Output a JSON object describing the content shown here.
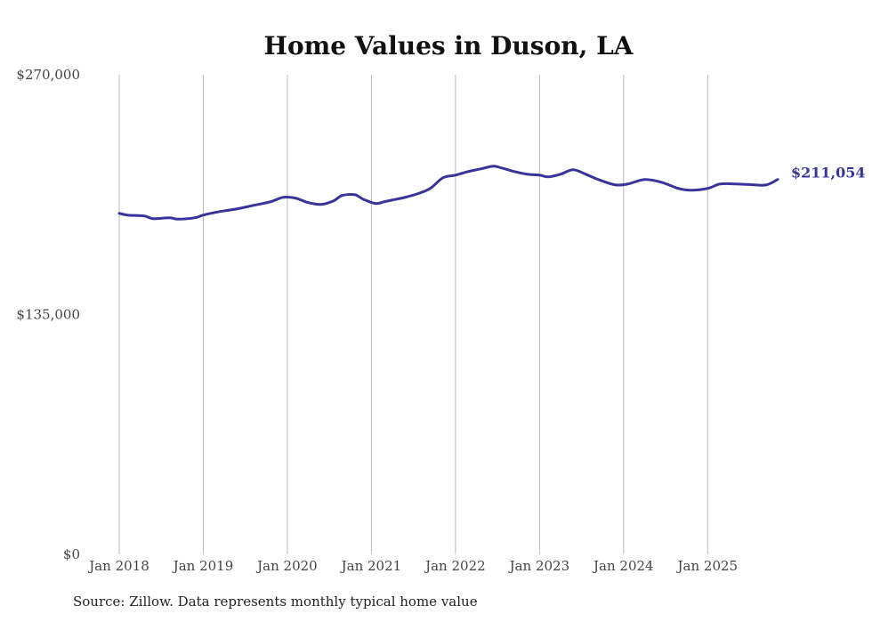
{
  "chart_data": {
    "type": "line",
    "title": "Home Values in Duson, LA",
    "xlabel": "",
    "ylabel": "",
    "ylim": [
      0,
      270000
    ],
    "y_ticks": [
      {
        "value": 0,
        "label": "$0"
      },
      {
        "value": 135000,
        "label": "$135,000"
      },
      {
        "value": 270000,
        "label": "$270,000"
      }
    ],
    "x_ticks": [
      {
        "value": 2018.0,
        "label": "Jan 2018"
      },
      {
        "value": 2019.0,
        "label": "Jan 2019"
      },
      {
        "value": 2020.0,
        "label": "Jan 2020"
      },
      {
        "value": 2021.0,
        "label": "Jan 2021"
      },
      {
        "value": 2022.0,
        "label": "Jan 2022"
      },
      {
        "value": 2023.0,
        "label": "Jan 2023"
      },
      {
        "value": 2024.0,
        "label": "Jan 2024"
      },
      {
        "value": 2025.0,
        "label": "Jan 2025"
      }
    ],
    "xlim": [
      2018.0,
      2025.833
    ],
    "grid": "vertical",
    "series": [
      {
        "name": "Typical home value",
        "color": "#3a3399",
        "end_label": "$211,054",
        "x": [
          2018.0,
          2018.1,
          2018.3,
          2018.4,
          2018.6,
          2018.7,
          2018.9,
          2019.0,
          2019.2,
          2019.4,
          2019.6,
          2019.8,
          2019.95,
          2020.1,
          2020.25,
          2020.4,
          2020.55,
          2020.65,
          2020.8,
          2020.9,
          2021.05,
          2021.15,
          2021.25,
          2021.4,
          2021.55,
          2021.7,
          2021.85,
          2022.0,
          2022.15,
          2022.3,
          2022.45,
          2022.55,
          2022.7,
          2022.85,
          2023.0,
          2023.1,
          2023.25,
          2023.4,
          2023.55,
          2023.7,
          2023.9,
          2024.05,
          2024.25,
          2024.45,
          2024.65,
          2024.8,
          2025.0,
          2025.15,
          2025.35,
          2025.55,
          2025.7,
          2025.833
        ],
        "values": [
          192000,
          191000,
          190500,
          189000,
          189500,
          188700,
          189500,
          191000,
          193000,
          194500,
          196500,
          198500,
          201000,
          200500,
          198000,
          197000,
          199000,
          202000,
          202500,
          200000,
          197500,
          198500,
          199500,
          201000,
          203000,
          206000,
          212000,
          213500,
          215500,
          217000,
          218500,
          217500,
          215500,
          214000,
          213500,
          212500,
          214000,
          216500,
          214000,
          211000,
          208000,
          208500,
          211000,
          209500,
          206000,
          205000,
          206000,
          208500,
          208500,
          208000,
          208000,
          211054
        ]
      }
    ]
  },
  "source_note": "Source: Zillow. Data represents monthly typical home value"
}
